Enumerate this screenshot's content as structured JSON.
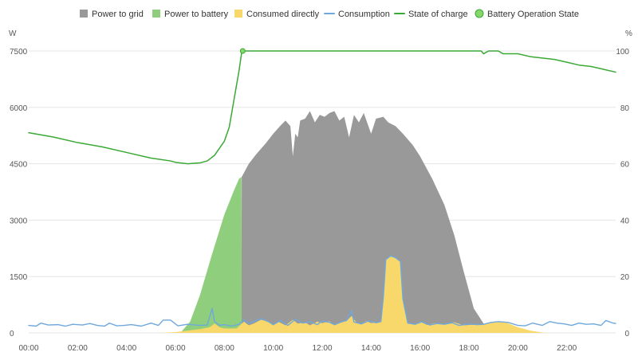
{
  "chart_data": {
    "type": "area",
    "title": "",
    "units": {
      "left": "W",
      "right": "%"
    },
    "legend": {
      "placement": "top-center",
      "items": [
        {
          "name": "Power to grid",
          "color": "#999999",
          "marker": "square"
        },
        {
          "name": "Power to battery",
          "color": "#8fce7d",
          "marker": "square"
        },
        {
          "name": "Consumed directly",
          "color": "#f8d86a",
          "marker": "square"
        },
        {
          "name": "Consumption",
          "color": "#6fa8dc",
          "marker": "line"
        },
        {
          "name": "State of charge",
          "color": "#3aa935",
          "marker": "line"
        },
        {
          "name": "Battery Operation State",
          "color": "#86d66b",
          "marker": "circle"
        }
      ]
    },
    "x_axis": {
      "min": 0,
      "max": 24,
      "tick_values": [
        0,
        2,
        4,
        6,
        8,
        10,
        12,
        14,
        16,
        18,
        20,
        22
      ],
      "tick_labels": [
        "00:00",
        "02:00",
        "04:00",
        "06:00",
        "08:00",
        "10:00",
        "12:00",
        "14:00",
        "16:00",
        "18:00",
        "20:00",
        "22:00"
      ]
    },
    "y_left": {
      "min": 0,
      "max": 7500,
      "tick_values": [
        0,
        1500,
        3000,
        4500,
        6000,
        7500
      ],
      "tick_labels": [
        "0",
        "1500",
        "3000",
        "4500",
        "6000",
        "7500"
      ],
      "grid": true
    },
    "y_right": {
      "min": 0,
      "max": 100,
      "tick_values": [
        0,
        20,
        40,
        60,
        80,
        100
      ],
      "tick_labels": [
        "0",
        "20",
        "40",
        "60",
        "80",
        "100"
      ]
    },
    "colors": {
      "grid": "#999999",
      "battery": "#8fce7d",
      "direct": "#f8d86a",
      "consumption": "#6fa8dc",
      "soc": "#3aa935",
      "battery_state": "#86d66b",
      "grid_line": "#e6e6e6",
      "axis_text": "#555555"
    },
    "series": [
      {
        "name": "Power to battery",
        "type": "area",
        "points": [
          [
            0.0,
            0
          ],
          [
            5.4,
            0
          ],
          [
            6.2,
            0
          ],
          [
            6.6,
            300
          ],
          [
            7.0,
            1000
          ],
          [
            7.5,
            2100
          ],
          [
            8.0,
            3150
          ],
          [
            8.4,
            3800
          ],
          [
            8.6,
            4100
          ],
          [
            8.7,
            4150
          ],
          [
            8.71,
            0
          ],
          [
            12.0,
            0
          ],
          [
            18.6,
            0
          ],
          [
            18.8,
            250
          ],
          [
            19.1,
            300
          ],
          [
            19.3,
            0
          ],
          [
            24.0,
            0
          ]
        ]
      },
      {
        "name": "Power to grid",
        "type": "area",
        "points": [
          [
            0.0,
            0
          ],
          [
            8.7,
            0
          ],
          [
            8.71,
            4150
          ],
          [
            9.0,
            4500
          ],
          [
            9.3,
            4750
          ],
          [
            9.7,
            5050
          ],
          [
            10.0,
            5300
          ],
          [
            10.3,
            5520
          ],
          [
            10.5,
            5650
          ],
          [
            10.7,
            5500
          ],
          [
            10.8,
            4700
          ],
          [
            10.9,
            5300
          ],
          [
            11.0,
            5200
          ],
          [
            11.1,
            5650
          ],
          [
            11.3,
            5700
          ],
          [
            11.5,
            5900
          ],
          [
            11.7,
            5600
          ],
          [
            11.9,
            5800
          ],
          [
            12.1,
            5750
          ],
          [
            12.3,
            5850
          ],
          [
            12.5,
            5900
          ],
          [
            12.7,
            5650
          ],
          [
            12.9,
            5750
          ],
          [
            13.1,
            5200
          ],
          [
            13.3,
            5800
          ],
          [
            13.5,
            5600
          ],
          [
            13.7,
            5850
          ],
          [
            14.0,
            5300
          ],
          [
            14.2,
            5700
          ],
          [
            14.5,
            5750
          ],
          [
            14.7,
            5600
          ],
          [
            15.0,
            5500
          ],
          [
            15.3,
            5300
          ],
          [
            15.7,
            5000
          ],
          [
            16.0,
            4700
          ],
          [
            16.5,
            4100
          ],
          [
            17.0,
            3400
          ],
          [
            17.4,
            2600
          ],
          [
            17.8,
            1600
          ],
          [
            18.2,
            650
          ],
          [
            18.6,
            250
          ],
          [
            18.8,
            0
          ],
          [
            24.0,
            0
          ]
        ]
      },
      {
        "name": "Consumed directly",
        "type": "area",
        "points": [
          [
            0.0,
            0
          ],
          [
            5.4,
            0
          ],
          [
            6.0,
            20
          ],
          [
            6.5,
            60
          ],
          [
            7.0,
            100
          ],
          [
            7.4,
            150
          ],
          [
            7.6,
            250
          ],
          [
            7.8,
            150
          ],
          [
            8.0,
            120
          ],
          [
            8.5,
            120
          ],
          [
            8.8,
            300
          ],
          [
            9.0,
            200
          ],
          [
            9.2,
            250
          ],
          [
            9.5,
            350
          ],
          [
            9.8,
            300
          ],
          [
            10.0,
            200
          ],
          [
            10.2,
            300
          ],
          [
            10.5,
            200
          ],
          [
            10.8,
            350
          ],
          [
            11.0,
            250
          ],
          [
            11.3,
            280
          ],
          [
            11.5,
            200
          ],
          [
            11.8,
            300
          ],
          [
            12.0,
            260
          ],
          [
            12.3,
            310
          ],
          [
            12.5,
            200
          ],
          [
            12.8,
            280
          ],
          [
            13.0,
            320
          ],
          [
            13.2,
            450
          ],
          [
            13.4,
            280
          ],
          [
            13.6,
            230
          ],
          [
            13.8,
            320
          ],
          [
            14.0,
            260
          ],
          [
            14.2,
            280
          ],
          [
            14.4,
            300
          ],
          [
            14.5,
            900
          ],
          [
            14.6,
            1950
          ],
          [
            14.8,
            2050
          ],
          [
            15.0,
            2000
          ],
          [
            15.2,
            1900
          ],
          [
            15.3,
            900
          ],
          [
            15.5,
            250
          ],
          [
            15.8,
            220
          ],
          [
            16.0,
            300
          ],
          [
            16.3,
            210
          ],
          [
            16.6,
            260
          ],
          [
            17.0,
            230
          ],
          [
            17.4,
            280
          ],
          [
            17.8,
            200
          ],
          [
            18.2,
            220
          ],
          [
            18.6,
            220
          ],
          [
            19.0,
            300
          ],
          [
            19.5,
            280
          ],
          [
            20.0,
            150
          ],
          [
            20.5,
            60
          ],
          [
            21.0,
            10
          ],
          [
            21.3,
            0
          ],
          [
            24.0,
            0
          ]
        ]
      },
      {
        "name": "Consumption",
        "type": "line",
        "points": [
          [
            0.0,
            200
          ],
          [
            0.3,
            180
          ],
          [
            0.5,
            260
          ],
          [
            0.8,
            210
          ],
          [
            1.2,
            220
          ],
          [
            1.5,
            180
          ],
          [
            1.8,
            230
          ],
          [
            2.2,
            210
          ],
          [
            2.5,
            250
          ],
          [
            2.8,
            200
          ],
          [
            3.1,
            180
          ],
          [
            3.3,
            260
          ],
          [
            3.6,
            190
          ],
          [
            3.9,
            200
          ],
          [
            4.2,
            220
          ],
          [
            4.6,
            180
          ],
          [
            5.0,
            260
          ],
          [
            5.3,
            200
          ],
          [
            5.5,
            340
          ],
          [
            5.8,
            340
          ],
          [
            6.1,
            190
          ],
          [
            6.5,
            230
          ],
          [
            6.8,
            210
          ],
          [
            7.0,
            200
          ],
          [
            7.3,
            210
          ],
          [
            7.5,
            650
          ],
          [
            7.6,
            300
          ],
          [
            7.8,
            200
          ],
          [
            8.0,
            220
          ],
          [
            8.3,
            180
          ],
          [
            8.6,
            230
          ],
          [
            8.8,
            350
          ],
          [
            9.0,
            250
          ],
          [
            9.2,
            300
          ],
          [
            9.5,
            380
          ],
          [
            9.8,
            300
          ],
          [
            10.0,
            220
          ],
          [
            10.3,
            330
          ],
          [
            10.6,
            200
          ],
          [
            10.9,
            360
          ],
          [
            11.2,
            260
          ],
          [
            11.5,
            300
          ],
          [
            11.8,
            220
          ],
          [
            12.0,
            320
          ],
          [
            12.3,
            280
          ],
          [
            12.5,
            220
          ],
          [
            12.8,
            300
          ],
          [
            13.0,
            330
          ],
          [
            13.2,
            600
          ],
          [
            13.3,
            290
          ],
          [
            13.6,
            240
          ],
          [
            13.9,
            320
          ],
          [
            14.2,
            270
          ],
          [
            14.4,
            300
          ],
          [
            14.5,
            950
          ],
          [
            14.6,
            1950
          ],
          [
            14.8,
            2050
          ],
          [
            15.0,
            2000
          ],
          [
            15.2,
            1900
          ],
          [
            15.3,
            900
          ],
          [
            15.5,
            260
          ],
          [
            15.8,
            230
          ],
          [
            16.1,
            300
          ],
          [
            16.4,
            210
          ],
          [
            16.7,
            250
          ],
          [
            17.0,
            230
          ],
          [
            17.3,
            270
          ],
          [
            17.6,
            200
          ],
          [
            18.0,
            240
          ],
          [
            18.3,
            220
          ],
          [
            18.6,
            230
          ],
          [
            18.9,
            280
          ],
          [
            19.2,
            300
          ],
          [
            19.6,
            280
          ],
          [
            20.0,
            200
          ],
          [
            20.3,
            190
          ],
          [
            20.6,
            260
          ],
          [
            21.0,
            200
          ],
          [
            21.3,
            300
          ],
          [
            21.6,
            260
          ],
          [
            21.9,
            240
          ],
          [
            22.2,
            200
          ],
          [
            22.5,
            260
          ],
          [
            22.8,
            230
          ],
          [
            23.1,
            240
          ],
          [
            23.4,
            200
          ],
          [
            23.6,
            330
          ],
          [
            23.9,
            260
          ],
          [
            24.0,
            250
          ]
        ]
      },
      {
        "name": "State of charge",
        "type": "line",
        "axis": "right",
        "points": [
          [
            0.0,
            71
          ],
          [
            1.0,
            69.5
          ],
          [
            2.0,
            67.5
          ],
          [
            3.0,
            66
          ],
          [
            4.0,
            64
          ],
          [
            5.0,
            62
          ],
          [
            5.8,
            61
          ],
          [
            6.0,
            60.5
          ],
          [
            6.5,
            60
          ],
          [
            7.0,
            60.3
          ],
          [
            7.3,
            61
          ],
          [
            7.6,
            63
          ],
          [
            8.0,
            68
          ],
          [
            8.2,
            73
          ],
          [
            8.4,
            83
          ],
          [
            8.6,
            93
          ],
          [
            8.7,
            99
          ],
          [
            8.75,
            100
          ],
          [
            9.0,
            100
          ],
          [
            12.0,
            100
          ],
          [
            16.0,
            100
          ],
          [
            18.5,
            100
          ],
          [
            18.6,
            99
          ],
          [
            18.8,
            100
          ],
          [
            19.2,
            100
          ],
          [
            19.4,
            99
          ],
          [
            20.0,
            99
          ],
          [
            20.5,
            98
          ],
          [
            21.0,
            97.5
          ],
          [
            21.5,
            97
          ],
          [
            22.0,
            96
          ],
          [
            22.5,
            95
          ],
          [
            23.0,
            94.5
          ],
          [
            23.5,
            93.5
          ],
          [
            24.0,
            92.5
          ]
        ]
      },
      {
        "name": "Battery Operation State",
        "type": "marker",
        "axis": "right",
        "points": [
          [
            8.75,
            100
          ]
        ]
      }
    ]
  }
}
